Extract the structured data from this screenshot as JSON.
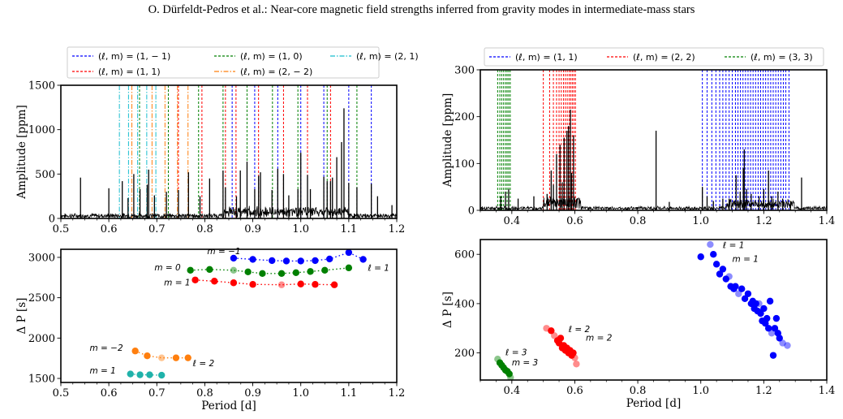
{
  "header": {
    "running_title": "O. Dürfeldt-Pedros  et al.: Near-core magnetic field strengths inferred from gravity modes in intermediate-mass stars"
  },
  "chart_data": [
    {
      "id": "spectrum_left",
      "type": "line",
      "xlim": [
        0.5,
        1.2
      ],
      "ylim": [
        0,
        1500
      ],
      "xticks": [
        "0.5",
        "0.6",
        "0.7",
        "0.8",
        "0.9",
        "1.0",
        "1.1",
        "1.2"
      ],
      "yticks": [
        "0",
        "500",
        "1000",
        "1500"
      ],
      "xlabel": "",
      "ylabel": "Amplitude [ppm]",
      "legend": [
        {
          "label": "(ℓ, m) = (1, − 1)",
          "color": "#0000ff",
          "dash": "3,2"
        },
        {
          "label": "(ℓ, m) = (1, 0)",
          "color": "#008000",
          "dash": "3,2"
        },
        {
          "label": "(ℓ, m) = (2, 1)",
          "color": "#17becf",
          "dash": "6,2,1.5,2"
        },
        {
          "label": "(ℓ, m) = (1, 1)",
          "color": "#ff0000",
          "dash": "3,2"
        },
        {
          "label": "(ℓ, m) = (2, − 2)",
          "color": "#ff7f0e",
          "dash": "6,2,1.5,2"
        }
      ],
      "legend_position": "top",
      "mode_lines": {
        "l1_m-1": [
          0.857,
          0.904,
          0.952,
          1.0,
          1.048,
          1.1,
          1.147
        ],
        "l1_m0": [
          0.664,
          0.724,
          0.787,
          0.838,
          0.888,
          0.941,
          0.994,
          1.055,
          1.117
        ],
        "l2_m1": [
          0.622,
          0.641,
          0.66,
          0.679,
          0.698
        ],
        "l1_m1": [
          0.745,
          0.794,
          0.843,
          0.865,
          0.912,
          0.964,
          1.014,
          1.062
        ],
        "l2_m-2": [
          0.648,
          0.69,
          0.717,
          0.743,
          0.765
        ]
      },
      "peaks": [
        {
          "x": 0.541,
          "y": 460
        },
        {
          "x": 0.6,
          "y": 340
        },
        {
          "x": 0.628,
          "y": 420
        },
        {
          "x": 0.64,
          "y": 230
        },
        {
          "x": 0.652,
          "y": 500
        },
        {
          "x": 0.665,
          "y": 330
        },
        {
          "x": 0.68,
          "y": 380
        },
        {
          "x": 0.683,
          "y": 550
        },
        {
          "x": 0.695,
          "y": 260
        },
        {
          "x": 0.72,
          "y": 300
        },
        {
          "x": 0.745,
          "y": 320
        },
        {
          "x": 0.766,
          "y": 520
        },
        {
          "x": 0.79,
          "y": 250
        },
        {
          "x": 0.81,
          "y": 450
        },
        {
          "x": 0.838,
          "y": 540
        },
        {
          "x": 0.843,
          "y": 350
        },
        {
          "x": 0.866,
          "y": 250
        },
        {
          "x": 0.874,
          "y": 540
        },
        {
          "x": 0.888,
          "y": 640
        },
        {
          "x": 0.904,
          "y": 330
        },
        {
          "x": 0.912,
          "y": 480
        },
        {
          "x": 0.916,
          "y": 520
        },
        {
          "x": 0.94,
          "y": 320
        },
        {
          "x": 0.952,
          "y": 560
        },
        {
          "x": 0.964,
          "y": 500
        },
        {
          "x": 0.975,
          "y": 260
        },
        {
          "x": 0.994,
          "y": 330
        },
        {
          "x": 1.0,
          "y": 740
        },
        {
          "x": 1.014,
          "y": 490
        },
        {
          "x": 1.02,
          "y": 330
        },
        {
          "x": 1.048,
          "y": 470
        },
        {
          "x": 1.055,
          "y": 420
        },
        {
          "x": 1.062,
          "y": 420
        },
        {
          "x": 1.066,
          "y": 460
        },
        {
          "x": 1.075,
          "y": 690
        },
        {
          "x": 1.085,
          "y": 860
        },
        {
          "x": 1.09,
          "y": 1240
        },
        {
          "x": 1.1,
          "y": 400
        },
        {
          "x": 1.117,
          "y": 350
        },
        {
          "x": 1.147,
          "y": 390
        },
        {
          "x": 1.16,
          "y": 250
        },
        {
          "x": 1.19,
          "y": 150
        }
      ]
    },
    {
      "id": "spectrum_right",
      "type": "line",
      "xlim": [
        0.3,
        1.4
      ],
      "ylim": [
        0,
        300
      ],
      "xticks": [
        "0.4",
        "0.6",
        "0.8",
        "1.0",
        "1.2",
        "1.4"
      ],
      "yticks": [
        "0",
        "100",
        "200",
        "300"
      ],
      "xlabel": "",
      "ylabel": "Amplitude [ppm]",
      "legend": [
        {
          "label": "(ℓ, m) = (1, 1)",
          "color": "#0000ff",
          "dash": "3,2"
        },
        {
          "label": "(ℓ, m) = (2, 2)",
          "color": "#ff0000",
          "dash": "3,2"
        },
        {
          "label": "(ℓ, m) = (3, 3)",
          "color": "#008000",
          "dash": "3,2"
        }
      ],
      "legend_position": "top",
      "mode_lines": {
        "l1_m1": [
          1.005,
          1.02,
          1.035,
          1.048,
          1.06,
          1.07,
          1.08,
          1.09,
          1.1,
          1.11,
          1.118,
          1.126,
          1.134,
          1.142,
          1.15,
          1.158,
          1.166,
          1.174,
          1.182,
          1.19,
          1.198,
          1.206,
          1.214,
          1.222,
          1.23,
          1.238,
          1.246,
          1.254,
          1.262,
          1.27,
          1.28
        ],
        "l2_m2": [
          0.5,
          0.52,
          0.532,
          0.542,
          0.55,
          0.557,
          0.564,
          0.57,
          0.576,
          0.582,
          0.587,
          0.592,
          0.597,
          0.602
        ],
        "l3_m3": [
          0.355,
          0.362,
          0.368,
          0.374,
          0.38,
          0.385,
          0.39,
          0.395
        ]
      },
      "peaks": [
        {
          "x": 0.365,
          "y": 30
        },
        {
          "x": 0.38,
          "y": 40
        },
        {
          "x": 0.39,
          "y": 45
        },
        {
          "x": 0.42,
          "y": 25
        },
        {
          "x": 0.47,
          "y": 30
        },
        {
          "x": 0.512,
          "y": 35
        },
        {
          "x": 0.525,
          "y": 85
        },
        {
          "x": 0.532,
          "y": 55
        },
        {
          "x": 0.542,
          "y": 120
        },
        {
          "x": 0.553,
          "y": 140
        },
        {
          "x": 0.56,
          "y": 60
        },
        {
          "x": 0.566,
          "y": 155
        },
        {
          "x": 0.575,
          "y": 170
        },
        {
          "x": 0.58,
          "y": 180
        },
        {
          "x": 0.586,
          "y": 215
        },
        {
          "x": 0.59,
          "y": 80
        },
        {
          "x": 0.596,
          "y": 160
        },
        {
          "x": 0.858,
          "y": 170
        },
        {
          "x": 0.9,
          "y": 18
        },
        {
          "x": 1.005,
          "y": 50
        },
        {
          "x": 1.02,
          "y": 30
        },
        {
          "x": 1.04,
          "y": 20
        },
        {
          "x": 1.07,
          "y": 25
        },
        {
          "x": 1.09,
          "y": 25
        },
        {
          "x": 1.112,
          "y": 75
        },
        {
          "x": 1.125,
          "y": 40
        },
        {
          "x": 1.135,
          "y": 90
        },
        {
          "x": 1.138,
          "y": 130
        },
        {
          "x": 1.145,
          "y": 45
        },
        {
          "x": 1.16,
          "y": 35
        },
        {
          "x": 1.185,
          "y": 30
        },
        {
          "x": 1.2,
          "y": 45
        },
        {
          "x": 1.215,
          "y": 85
        },
        {
          "x": 1.225,
          "y": 30
        },
        {
          "x": 1.245,
          "y": 40
        },
        {
          "x": 1.26,
          "y": 25
        },
        {
          "x": 1.285,
          "y": 20
        },
        {
          "x": 1.32,
          "y": 70
        }
      ]
    },
    {
      "id": "spacing_left",
      "type": "scatter",
      "xlim": [
        0.5,
        1.2
      ],
      "ylim": [
        1450,
        3100
      ],
      "xticks": [
        "0.5",
        "0.6",
        "0.7",
        "0.8",
        "0.9",
        "1.0",
        "1.1",
        "1.2"
      ],
      "yticks": [
        "1500",
        "2000",
        "2500",
        "3000"
      ],
      "xlabel": "Period [d]",
      "ylabel": "Δ P [s]",
      "series": [
        {
          "color": "#0000ff",
          "connected": true,
          "points": [
            [
              0.86,
              2990
            ],
            [
              0.9,
              2975
            ],
            [
              0.94,
              2960
            ],
            [
              0.97,
              2955
            ],
            [
              1.0,
              2955
            ],
            [
              1.03,
              2960
            ],
            [
              1.06,
              2980
            ],
            [
              1.1,
              3060
            ],
            [
              1.13,
              2975
            ]
          ],
          "faded": []
        },
        {
          "color": "#008000",
          "connected": true,
          "points": [
            [
              0.77,
              2840
            ],
            [
              0.81,
              2850
            ],
            [
              0.86,
              2840
            ],
            [
              0.89,
              2820
            ],
            [
              0.92,
              2800
            ],
            [
              0.96,
              2800
            ],
            [
              0.99,
              2810
            ],
            [
              1.02,
              2825
            ],
            [
              1.05,
              2840
            ],
            [
              1.1,
              2870
            ]
          ],
          "faded": [
            2
          ]
        },
        {
          "color": "#ff0000",
          "connected": true,
          "points": [
            [
              0.78,
              2720
            ],
            [
              0.82,
              2705
            ],
            [
              0.86,
              2685
            ],
            [
              0.9,
              2665
            ],
            [
              0.96,
              2660
            ],
            [
              1.0,
              2670
            ],
            [
              1.03,
              2665
            ],
            [
              1.07,
              2660
            ]
          ],
          "faded": [
            4
          ]
        },
        {
          "color": "#ff7f0e",
          "connected": true,
          "points": [
            [
              0.655,
              1840
            ],
            [
              0.68,
              1780
            ],
            [
              0.71,
              1755
            ],
            [
              0.74,
              1755
            ],
            [
              0.765,
              1755
            ]
          ],
          "faded": [
            2
          ]
        },
        {
          "color": "#20b2aa",
          "connected": true,
          "points": [
            [
              0.645,
              1555
            ],
            [
              0.665,
              1545
            ],
            [
              0.685,
              1545
            ],
            [
              0.71,
              1540
            ]
          ],
          "faded": []
        }
      ],
      "annotations": [
        {
          "text": "m = −1",
          "x": 0.805,
          "y": 3040
        },
        {
          "text": "m = 0",
          "x": 0.695,
          "y": 2840
        },
        {
          "text": "ℓ = 1",
          "x": 1.14,
          "y": 2835
        },
        {
          "text": "m = 1",
          "x": 0.715,
          "y": 2650
        },
        {
          "text": "m = −2",
          "x": 0.56,
          "y": 1840
        },
        {
          "text": "m = 1",
          "x": 0.56,
          "y": 1560
        },
        {
          "text": "ℓ = 2",
          "x": 0.775,
          "y": 1650
        }
      ]
    },
    {
      "id": "spacing_right",
      "type": "scatter",
      "xlim": [
        0.3,
        1.4
      ],
      "ylim": [
        90,
        660
      ],
      "xticks": [
        "0.4",
        "0.6",
        "0.8",
        "1.0",
        "1.2",
        "1.4"
      ],
      "yticks": [
        "200",
        "400",
        "600"
      ],
      "xlabel": "Period [d]",
      "ylabel": "Δ P [s]",
      "series": [
        {
          "color": "#0000ff",
          "connected": false,
          "points": [
            [
              1.0,
              590
            ],
            [
              1.03,
              640
            ],
            [
              1.04,
              600
            ],
            [
              1.05,
              560
            ],
            [
              1.06,
              520
            ],
            [
              1.07,
              540
            ],
            [
              1.08,
              500
            ],
            [
              1.09,
              510
            ],
            [
              1.095,
              470
            ],
            [
              1.105,
              460
            ],
            [
              1.11,
              470
            ],
            [
              1.12,
              440
            ],
            [
              1.13,
              460
            ],
            [
              1.14,
              420
            ],
            [
              1.15,
              440
            ],
            [
              1.16,
              400
            ],
            [
              1.165,
              410
            ],
            [
              1.17,
              380
            ],
            [
              1.175,
              400
            ],
            [
              1.18,
              370
            ],
            [
              1.185,
              400
            ],
            [
              1.19,
              360
            ],
            [
              1.195,
              330
            ],
            [
              1.2,
              380
            ],
            [
              1.205,
              320
            ],
            [
              1.21,
              340
            ],
            [
              1.215,
              300
            ],
            [
              1.22,
              410
            ],
            [
              1.225,
              280
            ],
            [
              1.23,
              190
            ],
            [
              1.235,
              300
            ],
            [
              1.24,
              340
            ],
            [
              1.245,
              280
            ],
            [
              1.25,
              260
            ],
            [
              1.26,
              240
            ],
            [
              1.275,
              230
            ]
          ],
          "faded": [
            1,
            7,
            11,
            20,
            28,
            34,
            35
          ]
        },
        {
          "color": "#ff0000",
          "connected": false,
          "points": [
            [
              0.51,
              300
            ],
            [
              0.525,
              290
            ],
            [
              0.535,
              270
            ],
            [
              0.545,
              250
            ],
            [
              0.55,
              240
            ],
            [
              0.555,
              260
            ],
            [
              0.56,
              220
            ],
            [
              0.565,
              230
            ],
            [
              0.57,
              210
            ],
            [
              0.575,
              220
            ],
            [
              0.58,
              200
            ],
            [
              0.585,
              210
            ],
            [
              0.59,
              190
            ],
            [
              0.595,
              200
            ],
            [
              0.6,
              180
            ],
            [
              0.605,
              155
            ]
          ],
          "faded": [
            0,
            2,
            14,
            15
          ]
        },
        {
          "color": "#008000",
          "connected": false,
          "points": [
            [
              0.355,
              175
            ],
            [
              0.362,
              160
            ],
            [
              0.368,
              150
            ],
            [
              0.374,
              140
            ],
            [
              0.38,
              130
            ],
            [
              0.386,
              125
            ],
            [
              0.392,
              115
            ],
            [
              0.396,
              100
            ]
          ],
          "faded": [
            0,
            7
          ]
        }
      ],
      "annotations": [
        {
          "text": "ℓ = 1",
          "x": 1.07,
          "y": 625
        },
        {
          "text": "m = 1",
          "x": 1.1,
          "y": 570
        },
        {
          "text": "ℓ = 2",
          "x": 0.58,
          "y": 285
        },
        {
          "text": "m = 2",
          "x": 0.635,
          "y": 250
        },
        {
          "text": "ℓ = 3",
          "x": 0.38,
          "y": 190
        },
        {
          "text": "m = 3",
          "x": 0.4,
          "y": 150
        }
      ]
    }
  ]
}
